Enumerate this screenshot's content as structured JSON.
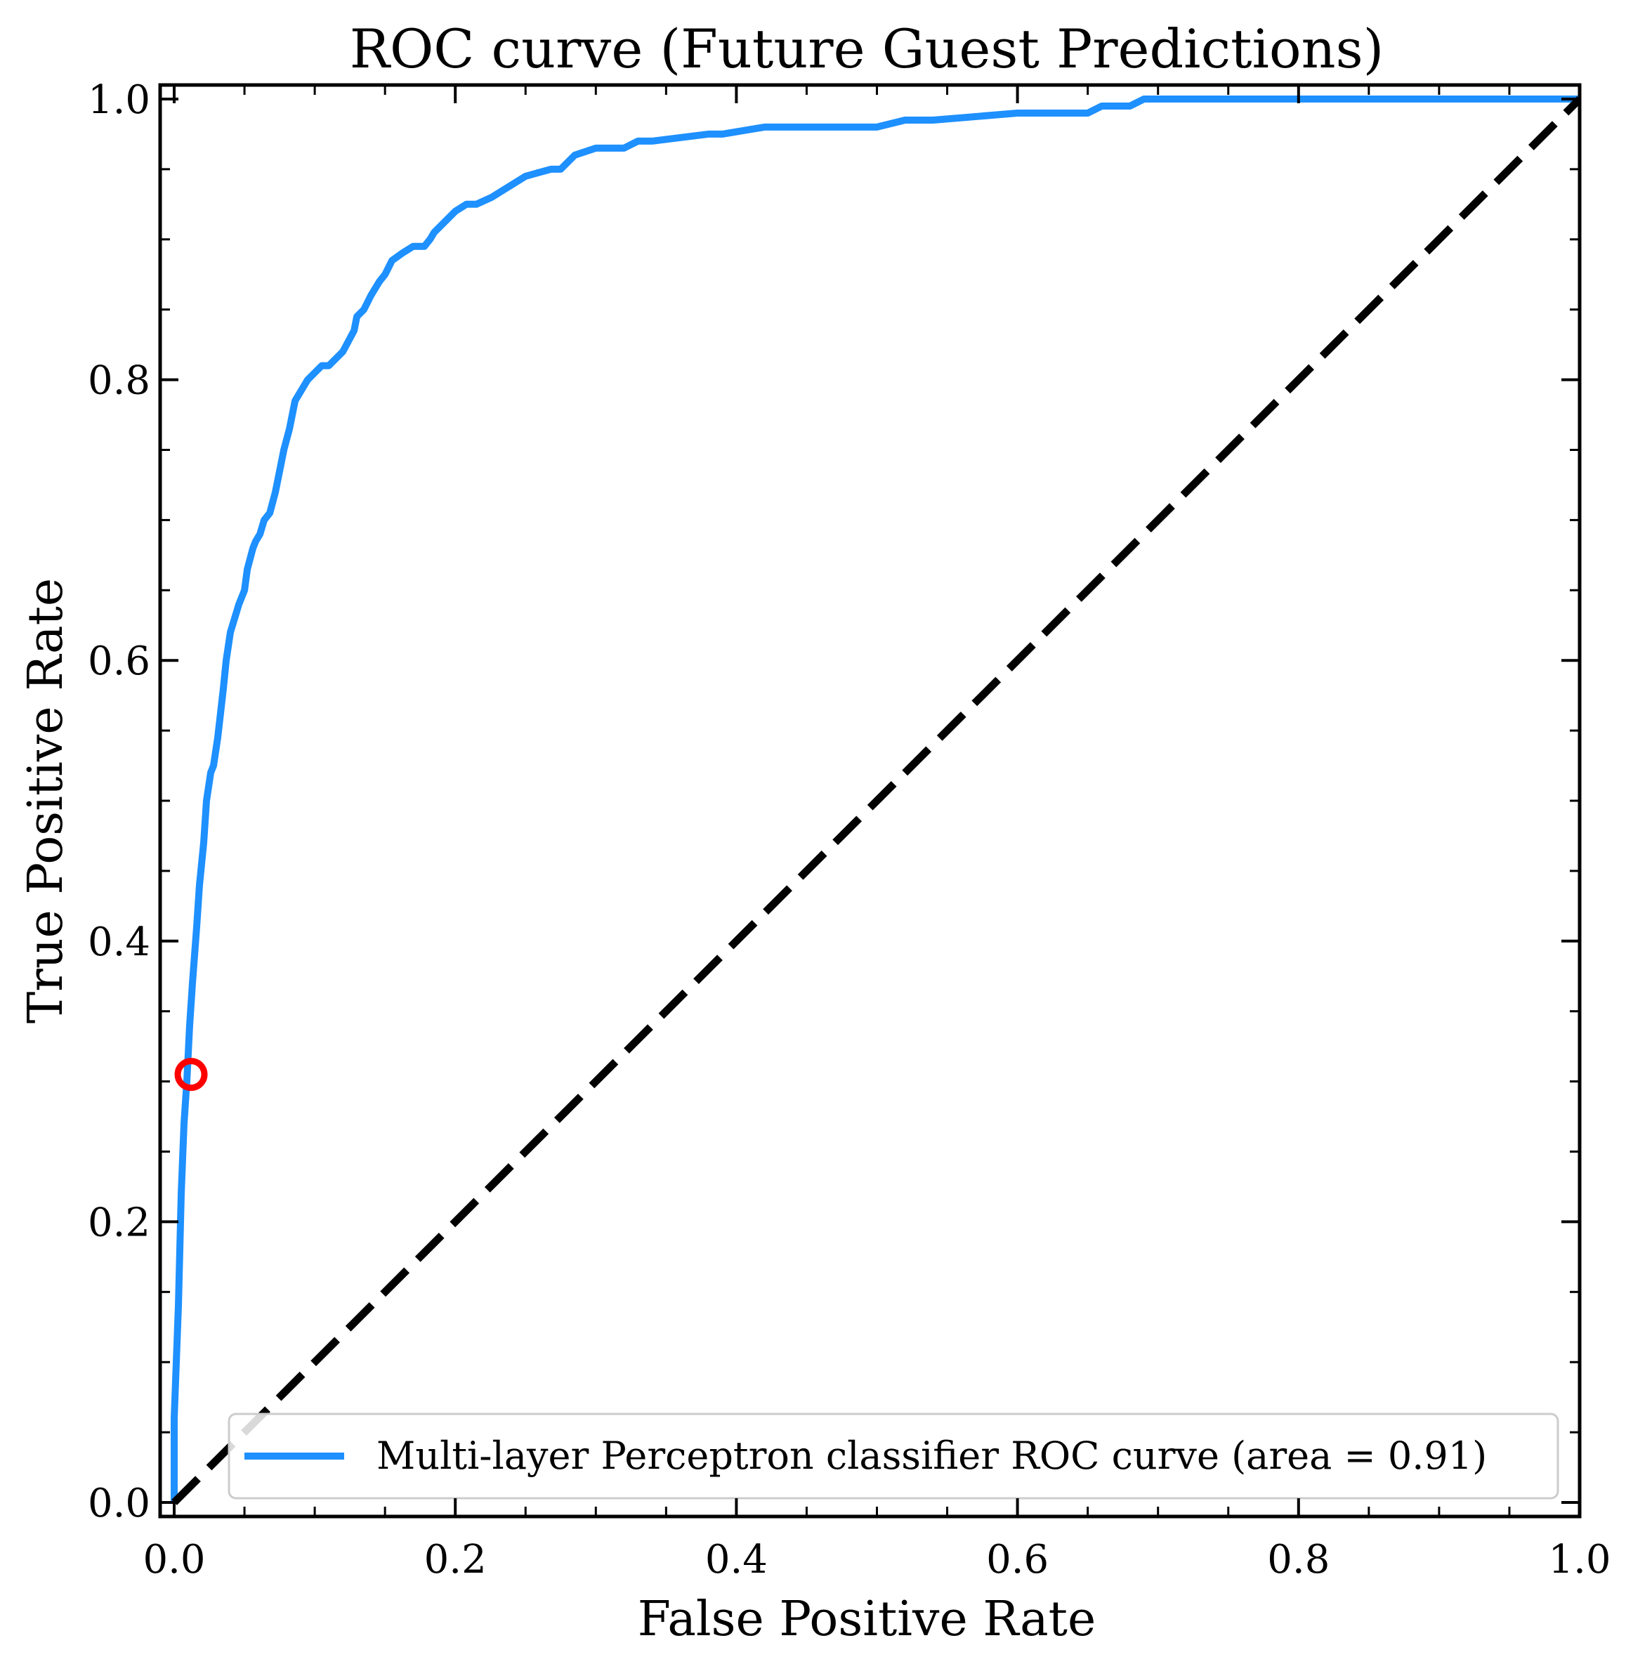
{
  "chart_data": {
    "type": "line",
    "title": "ROC curve (Future Guest Predictions)",
    "xlabel": "False Positive Rate",
    "ylabel": "True Positive Rate",
    "xlim": [
      -0.01,
      1.0
    ],
    "ylim": [
      -0.01,
      1.01
    ],
    "x_ticks": [
      "0.0",
      "0.2",
      "0.4",
      "0.6",
      "0.8",
      "1.0"
    ],
    "y_ticks": [
      "0.0",
      "0.2",
      "0.4",
      "0.6",
      "0.8",
      "1.0"
    ],
    "grid": false,
    "legend_position": "lower-right",
    "series": [
      {
        "name": "Multi-layer Perceptron classifier ROC curve (area = 0.91)",
        "color": "#1e90ff",
        "style": "solid",
        "x": [
          0.0,
          0.0,
          0.003,
          0.005,
          0.007,
          0.009,
          0.011,
          0.013,
          0.016,
          0.018,
          0.021,
          0.023,
          0.026,
          0.028,
          0.031,
          0.035,
          0.037,
          0.04,
          0.046,
          0.05,
          0.052,
          0.056,
          0.058,
          0.061,
          0.064,
          0.068,
          0.072,
          0.075,
          0.078,
          0.082,
          0.086,
          0.092,
          0.095,
          0.1,
          0.105,
          0.11,
          0.115,
          0.12,
          0.128,
          0.13,
          0.135,
          0.14,
          0.146,
          0.15,
          0.155,
          0.162,
          0.17,
          0.178,
          0.182,
          0.185,
          0.19,
          0.2,
          0.208,
          0.215,
          0.226,
          0.25,
          0.268,
          0.275,
          0.285,
          0.3,
          0.32,
          0.33,
          0.34,
          0.38,
          0.39,
          0.42,
          0.45,
          0.5,
          0.52,
          0.54,
          0.6,
          0.65,
          0.66,
          0.68,
          0.69,
          0.8,
          0.9,
          1.0
        ],
        "y": [
          0.0,
          0.06,
          0.14,
          0.22,
          0.27,
          0.3,
          0.34,
          0.37,
          0.41,
          0.44,
          0.47,
          0.5,
          0.52,
          0.525,
          0.545,
          0.58,
          0.6,
          0.62,
          0.64,
          0.65,
          0.665,
          0.68,
          0.685,
          0.69,
          0.7,
          0.705,
          0.72,
          0.735,
          0.75,
          0.765,
          0.785,
          0.795,
          0.8,
          0.805,
          0.81,
          0.81,
          0.815,
          0.82,
          0.835,
          0.845,
          0.85,
          0.86,
          0.87,
          0.875,
          0.885,
          0.89,
          0.895,
          0.895,
          0.9,
          0.905,
          0.91,
          0.92,
          0.925,
          0.925,
          0.93,
          0.945,
          0.95,
          0.95,
          0.96,
          0.965,
          0.965,
          0.97,
          0.97,
          0.975,
          0.975,
          0.98,
          0.98,
          0.98,
          0.985,
          0.985,
          0.99,
          0.99,
          0.995,
          0.995,
          1.0,
          1.0,
          1.0,
          1.0
        ]
      },
      {
        "color": "#000000",
        "style": "dashed",
        "x": [
          0.0,
          1.0
        ],
        "y": [
          0.0,
          1.0
        ]
      }
    ],
    "marker": {
      "x": 0.012,
      "y": 0.305,
      "shape": "hollow-circle",
      "color": "#ff0000"
    }
  }
}
